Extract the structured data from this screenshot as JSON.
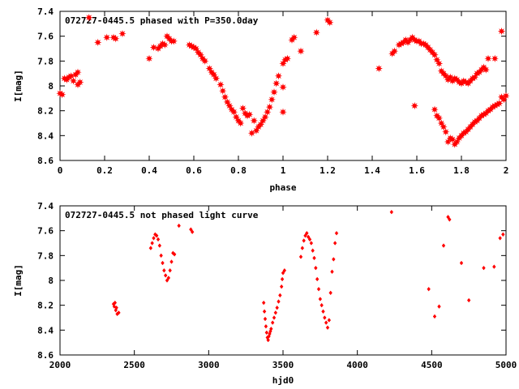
{
  "chart_data": [
    {
      "type": "scatter",
      "title": "072727-0445.5 phased with P=350.0day",
      "xlabel": "phase",
      "ylabel": "I[mag]",
      "xlim": [
        0,
        2
      ],
      "ylim": [
        7.4,
        8.6
      ],
      "y_inverted": true,
      "grid": false,
      "marker": "star",
      "color": "#ff0000",
      "x_ticks": [
        "0",
        "0.2",
        "0.4",
        "0.6",
        "0.8",
        "1",
        "1.2",
        "1.4",
        "1.6",
        "1.8",
        "2"
      ],
      "y_ticks": [
        "7.4",
        "7.6",
        "7.8",
        "8",
        "8.2",
        "8.4",
        "8.6"
      ],
      "points": [
        [
          0.0,
          8.06
        ],
        [
          0.01,
          8.07
        ],
        [
          0.02,
          7.94
        ],
        [
          0.03,
          7.95
        ],
        [
          0.04,
          7.93
        ],
        [
          0.05,
          7.92
        ],
        [
          0.06,
          7.96
        ],
        [
          0.07,
          7.91
        ],
        [
          0.08,
          7.89
        ],
        [
          0.09,
          7.97
        ],
        [
          0.08,
          7.99
        ],
        [
          0.13,
          7.45
        ],
        [
          0.17,
          7.65
        ],
        [
          0.21,
          7.61
        ],
        [
          0.24,
          7.61
        ],
        [
          0.25,
          7.62
        ],
        [
          0.28,
          7.58
        ],
        [
          0.4,
          7.78
        ],
        [
          0.42,
          7.69
        ],
        [
          0.44,
          7.7
        ],
        [
          0.45,
          7.68
        ],
        [
          0.46,
          7.66
        ],
        [
          0.47,
          7.67
        ],
        [
          0.48,
          7.6
        ],
        [
          0.49,
          7.62
        ],
        [
          0.5,
          7.64
        ],
        [
          0.51,
          7.64
        ],
        [
          0.58,
          7.67
        ],
        [
          0.59,
          7.68
        ],
        [
          0.6,
          7.69
        ],
        [
          0.61,
          7.7
        ],
        [
          0.62,
          7.73
        ],
        [
          0.63,
          7.75
        ],
        [
          0.64,
          7.78
        ],
        [
          0.65,
          7.8
        ],
        [
          0.67,
          7.86
        ],
        [
          0.68,
          7.89
        ],
        [
          0.69,
          7.91
        ],
        [
          0.7,
          7.94
        ],
        [
          0.72,
          7.99
        ],
        [
          0.73,
          8.04
        ],
        [
          0.74,
          8.09
        ],
        [
          0.75,
          8.13
        ],
        [
          0.76,
          8.16
        ],
        [
          0.77,
          8.19
        ],
        [
          0.78,
          8.21
        ],
        [
          0.79,
          8.25
        ],
        [
          0.8,
          8.28
        ],
        [
          0.81,
          8.3
        ],
        [
          0.82,
          8.18
        ],
        [
          0.83,
          8.22
        ],
        [
          0.84,
          8.24
        ],
        [
          0.85,
          8.23
        ],
        [
          0.86,
          8.38
        ],
        [
          0.87,
          8.28
        ],
        [
          0.88,
          8.36
        ],
        [
          0.89,
          8.33
        ],
        [
          0.9,
          8.31
        ],
        [
          0.91,
          8.28
        ],
        [
          0.92,
          8.25
        ],
        [
          0.93,
          8.21
        ],
        [
          0.94,
          8.17
        ],
        [
          0.95,
          8.11
        ],
        [
          0.96,
          8.05
        ],
        [
          0.97,
          7.98
        ],
        [
          0.98,
          7.92
        ],
        [
          1.0,
          8.21
        ],
        [
          1.0,
          8.01
        ],
        [
          1.0,
          7.82
        ],
        [
          1.01,
          7.79
        ],
        [
          1.02,
          7.78
        ],
        [
          1.04,
          7.63
        ],
        [
          1.05,
          7.61
        ],
        [
          1.08,
          7.72
        ],
        [
          1.15,
          7.57
        ],
        [
          1.2,
          7.47
        ],
        [
          1.21,
          7.49
        ],
        [
          1.43,
          7.86
        ],
        [
          1.49,
          7.74
        ],
        [
          1.5,
          7.72
        ],
        [
          1.52,
          7.67
        ],
        [
          1.53,
          7.66
        ],
        [
          1.54,
          7.65
        ],
        [
          1.55,
          7.63
        ],
        [
          1.56,
          7.65
        ],
        [
          1.57,
          7.63
        ],
        [
          1.58,
          7.61
        ],
        [
          1.59,
          7.63
        ],
        [
          1.6,
          7.64
        ],
        [
          1.61,
          7.64
        ],
        [
          1.62,
          7.66
        ],
        [
          1.63,
          7.66
        ],
        [
          1.64,
          7.67
        ],
        [
          1.65,
          7.69
        ],
        [
          1.66,
          7.71
        ],
        [
          1.67,
          7.73
        ],
        [
          1.68,
          7.75
        ],
        [
          1.69,
          7.79
        ],
        [
          1.7,
          7.82
        ],
        [
          1.71,
          7.88
        ],
        [
          1.72,
          7.9
        ],
        [
          1.73,
          7.92
        ],
        [
          1.74,
          7.95
        ],
        [
          1.75,
          7.93
        ],
        [
          1.76,
          7.96
        ],
        [
          1.77,
          7.94
        ],
        [
          1.78,
          7.95
        ],
        [
          1.79,
          7.97
        ],
        [
          1.8,
          7.98
        ],
        [
          1.81,
          7.96
        ],
        [
          1.82,
          7.97
        ],
        [
          1.83,
          7.98
        ],
        [
          1.84,
          7.96
        ],
        [
          1.85,
          7.94
        ],
        [
          1.86,
          7.93
        ],
        [
          1.87,
          7.9
        ],
        [
          1.88,
          7.89
        ],
        [
          1.89,
          7.87
        ],
        [
          1.9,
          7.85
        ],
        [
          1.91,
          7.87
        ],
        [
          1.92,
          7.78
        ],
        [
          1.95,
          7.78
        ],
        [
          1.98,
          7.56
        ],
        [
          1.59,
          8.16
        ],
        [
          1.68,
          8.19
        ],
        [
          1.69,
          8.24
        ],
        [
          1.7,
          8.26
        ],
        [
          1.71,
          8.3
        ],
        [
          1.72,
          8.33
        ],
        [
          1.73,
          8.37
        ],
        [
          1.74,
          8.45
        ],
        [
          1.75,
          8.42
        ],
        [
          1.76,
          8.43
        ],
        [
          1.77,
          8.47
        ],
        [
          1.78,
          8.45
        ],
        [
          1.79,
          8.42
        ],
        [
          1.8,
          8.4
        ],
        [
          1.81,
          8.38
        ],
        [
          1.82,
          8.37
        ],
        [
          1.83,
          8.35
        ],
        [
          1.84,
          8.33
        ],
        [
          1.85,
          8.31
        ],
        [
          1.86,
          8.29
        ],
        [
          1.87,
          8.28
        ],
        [
          1.88,
          8.26
        ],
        [
          1.89,
          8.24
        ],
        [
          1.9,
          8.23
        ],
        [
          1.91,
          8.22
        ],
        [
          1.92,
          8.2
        ],
        [
          1.93,
          8.19
        ],
        [
          1.94,
          8.17
        ],
        [
          1.95,
          8.16
        ],
        [
          1.96,
          8.15
        ],
        [
          1.97,
          8.14
        ],
        [
          1.99,
          8.11
        ],
        [
          2.0,
          8.08
        ],
        [
          1.98,
          8.09
        ]
      ]
    },
    {
      "type": "scatter",
      "title": "072727-0445.5 not phased light curve",
      "xlabel": "hjd0",
      "ylabel": "I[mag]",
      "xlim": [
        2000,
        5000
      ],
      "ylim": [
        7.4,
        8.6
      ],
      "y_inverted": true,
      "grid": false,
      "marker": "diamond",
      "color": "#ff0000",
      "x_ticks": [
        "2000",
        "2500",
        "3000",
        "3500",
        "4000",
        "4500",
        "5000"
      ],
      "y_ticks": [
        "7.4",
        "7.6",
        "7.8",
        "8",
        "8.2",
        "8.4",
        "8.6"
      ],
      "points": [
        [
          2360,
          8.19
        ],
        [
          2365,
          8.21
        ],
        [
          2370,
          8.18
        ],
        [
          2375,
          8.24
        ],
        [
          2380,
          8.22
        ],
        [
          2385,
          8.27
        ],
        [
          2395,
          8.26
        ],
        [
          2610,
          7.74
        ],
        [
          2620,
          7.7
        ],
        [
          2630,
          7.66
        ],
        [
          2640,
          7.63
        ],
        [
          2650,
          7.64
        ],
        [
          2660,
          7.67
        ],
        [
          2670,
          7.72
        ],
        [
          2680,
          7.8
        ],
        [
          2690,
          7.86
        ],
        [
          2700,
          7.92
        ],
        [
          2710,
          7.96
        ],
        [
          2720,
          8.0
        ],
        [
          2730,
          7.98
        ],
        [
          2740,
          7.92
        ],
        [
          2750,
          7.85
        ],
        [
          2760,
          7.78
        ],
        [
          2770,
          7.79
        ],
        [
          2800,
          7.56
        ],
        [
          2880,
          7.59
        ],
        [
          2890,
          7.61
        ],
        [
          3370,
          8.18
        ],
        [
          3375,
          8.25
        ],
        [
          3380,
          8.31
        ],
        [
          3385,
          8.37
        ],
        [
          3390,
          8.42
        ],
        [
          3395,
          8.46
        ],
        [
          3400,
          8.48
        ],
        [
          3405,
          8.45
        ],
        [
          3410,
          8.43
        ],
        [
          3415,
          8.41
        ],
        [
          3420,
          8.39
        ],
        [
          3430,
          8.34
        ],
        [
          3440,
          8.3
        ],
        [
          3450,
          8.26
        ],
        [
          3460,
          8.22
        ],
        [
          3470,
          8.17
        ],
        [
          3480,
          8.12
        ],
        [
          3490,
          8.05
        ],
        [
          3495,
          7.99
        ],
        [
          3500,
          7.94
        ],
        [
          3510,
          7.92
        ],
        [
          3620,
          7.81
        ],
        [
          3630,
          7.74
        ],
        [
          3640,
          7.68
        ],
        [
          3650,
          7.64
        ],
        [
          3660,
          7.62
        ],
        [
          3670,
          7.65
        ],
        [
          3680,
          7.67
        ],
        [
          3690,
          7.7
        ],
        [
          3700,
          7.76
        ],
        [
          3710,
          7.82
        ],
        [
          3720,
          7.9
        ],
        [
          3730,
          7.99
        ],
        [
          3740,
          8.07
        ],
        [
          3750,
          8.15
        ],
        [
          3760,
          8.2
        ],
        [
          3770,
          8.25
        ],
        [
          3780,
          8.3
        ],
        [
          3790,
          8.34
        ],
        [
          3800,
          8.38
        ],
        [
          3810,
          8.32
        ],
        [
          3820,
          8.1
        ],
        [
          3830,
          7.93
        ],
        [
          3840,
          7.83
        ],
        [
          3850,
          7.7
        ],
        [
          3860,
          7.62
        ],
        [
          4230,
          7.45
        ],
        [
          4480,
          8.07
        ],
        [
          4520,
          8.29
        ],
        [
          4550,
          8.21
        ],
        [
          4580,
          7.72
        ],
        [
          4610,
          7.49
        ],
        [
          4620,
          7.51
        ],
        [
          4700,
          7.86
        ],
        [
          4750,
          8.16
        ],
        [
          4850,
          7.9
        ],
        [
          4920,
          7.89
        ],
        [
          4960,
          7.66
        ],
        [
          4980,
          7.63
        ]
      ]
    }
  ]
}
